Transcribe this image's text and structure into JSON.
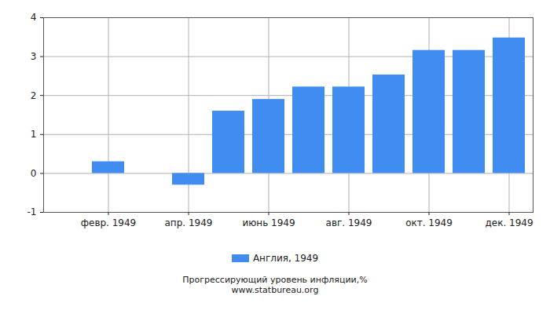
{
  "chart_data": {
    "type": "bar",
    "title": "Прогрессирующий уровень инфляции,%",
    "caption": "www.statbureau.org",
    "categories": [
      null,
      "февр. 1949",
      null,
      "апр. 1949",
      null,
      "июнь 1949",
      null,
      "авг. 1949",
      null,
      "окт. 1949",
      null,
      "дек. 1949"
    ],
    "series": [
      {
        "name": "Англия, 1949",
        "color": "#418cf0",
        "values": [
          0,
          0.3,
          0,
          -0.3,
          1.6,
          1.9,
          2.22,
          2.22,
          2.53,
          3.16,
          3.16,
          3.48
        ]
      }
    ],
    "ylim": [
      -1,
      4
    ],
    "yticks": [
      -1,
      0,
      1,
      2,
      3,
      4
    ],
    "grid": true,
    "legend": "bottom"
  }
}
